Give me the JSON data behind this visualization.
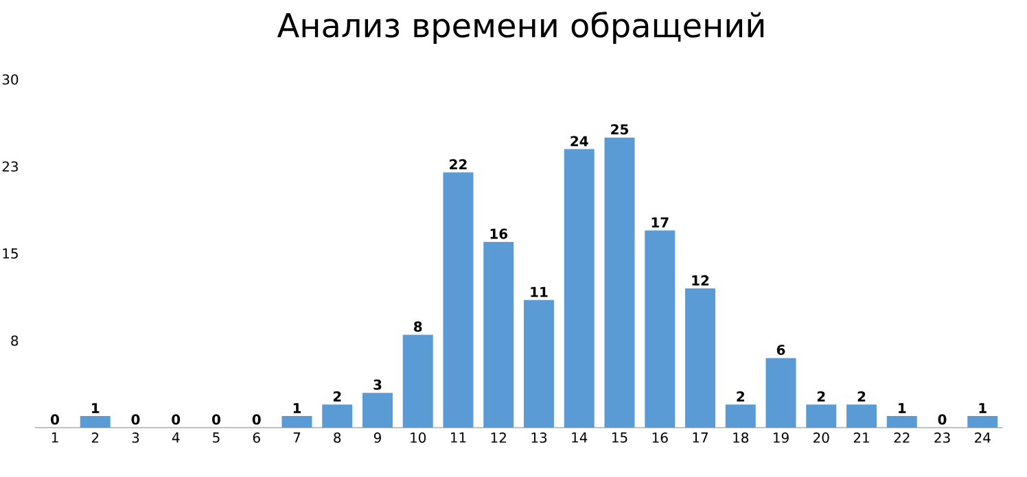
{
  "chart_data": {
    "type": "bar",
    "title": "Анализ времени обращений",
    "categories": [
      "1",
      "2",
      "3",
      "4",
      "5",
      "6",
      "7",
      "8",
      "9",
      "10",
      "11",
      "12",
      "13",
      "14",
      "15",
      "16",
      "17",
      "18",
      "19",
      "20",
      "21",
      "22",
      "23",
      "24"
    ],
    "values": [
      0,
      1,
      0,
      0,
      0,
      0,
      1,
      2,
      3,
      8,
      22,
      16,
      11,
      24,
      25,
      17,
      12,
      2,
      6,
      2,
      2,
      1,
      0,
      1
    ],
    "color": "#5b9bd5",
    "ylim": [
      0,
      30
    ],
    "yticks": [
      {
        "value": 0,
        "label": null
      },
      {
        "value": 7.5,
        "label": "8"
      },
      15,
      {
        "value": 22.5,
        "label": "23"
      },
      30
    ],
    "data_labels": true
  }
}
